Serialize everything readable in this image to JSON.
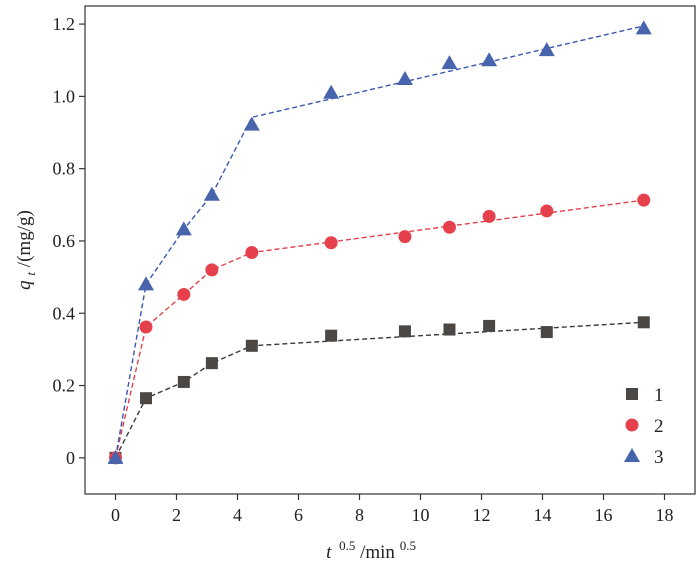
{
  "chart_data": {
    "type": "scatter",
    "xlabel_main": "t",
    "xlabel_sup1": "0.5",
    "xlabel_mid": "/min",
    "xlabel_sup2": "0.5",
    "ylabel_main": "q",
    "ylabel_sub": "t",
    "ylabel_unit": "/(mg/g)",
    "xlim": [
      -1,
      19
    ],
    "ylim": [
      -0.1,
      1.25
    ],
    "xticks": [
      0,
      2,
      4,
      6,
      8,
      10,
      12,
      14,
      16,
      18
    ],
    "xtick_labels": [
      "0",
      "2",
      "4",
      "6",
      "8",
      "10",
      "12",
      "14",
      "16",
      "18"
    ],
    "yticks": [
      0,
      0.2,
      0.4,
      0.6,
      0.8,
      1.0,
      1.2
    ],
    "ytick_labels": [
      "0",
      "0.2",
      "0.4",
      "0.6",
      "0.8",
      "1.0",
      "1.2"
    ],
    "grid": false,
    "legend_position": "bottom-right",
    "series": [
      {
        "name": "1",
        "marker": "square",
        "color": "#4a4744",
        "line_color": "#3a3a3a",
        "x": [
          0,
          1,
          2.24,
          3.16,
          4.47,
          7.07,
          9.49,
          10.95,
          12.25,
          14.14,
          17.32
        ],
        "y": [
          0,
          0.165,
          0.21,
          0.262,
          0.31,
          0.338,
          0.35,
          0.355,
          0.365,
          0.348,
          0.375
        ],
        "fit": [
          [
            0,
            0
          ],
          [
            1,
            0.165
          ],
          [
            2.24,
            0.21
          ],
          [
            3.16,
            0.262
          ],
          [
            4.47,
            0.31
          ],
          [
            17.32,
            0.375
          ]
        ]
      },
      {
        "name": "2",
        "marker": "circle",
        "color": "#e5404b",
        "line_color": "#e5404b",
        "x": [
          0,
          1,
          2.24,
          3.16,
          4.47,
          7.07,
          9.49,
          10.95,
          12.25,
          14.14,
          17.32
        ],
        "y": [
          0,
          0.362,
          0.452,
          0.52,
          0.568,
          0.595,
          0.612,
          0.638,
          0.668,
          0.683,
          0.713
        ],
        "fit": [
          [
            0,
            0
          ],
          [
            1,
            0.362
          ],
          [
            2.24,
            0.452
          ],
          [
            3.16,
            0.52
          ],
          [
            4.47,
            0.568
          ],
          [
            17.32,
            0.713
          ]
        ]
      },
      {
        "name": "3",
        "marker": "triangle",
        "color": "#4864ad",
        "line_color": "#3a57b0",
        "x": [
          0,
          1,
          2.24,
          3.16,
          4.47,
          7.07,
          9.49,
          10.95,
          12.25,
          14.14,
          17.32
        ],
        "y": [
          0,
          0.48,
          0.632,
          0.728,
          0.922,
          1.01,
          1.048,
          1.092,
          1.1,
          1.128,
          1.188
        ],
        "fit": [
          [
            0,
            0
          ],
          [
            1,
            0.48
          ],
          [
            2.24,
            0.632
          ],
          [
            3.16,
            0.728
          ],
          [
            4.47,
            0.942
          ],
          [
            17.32,
            1.195
          ]
        ]
      }
    ]
  }
}
